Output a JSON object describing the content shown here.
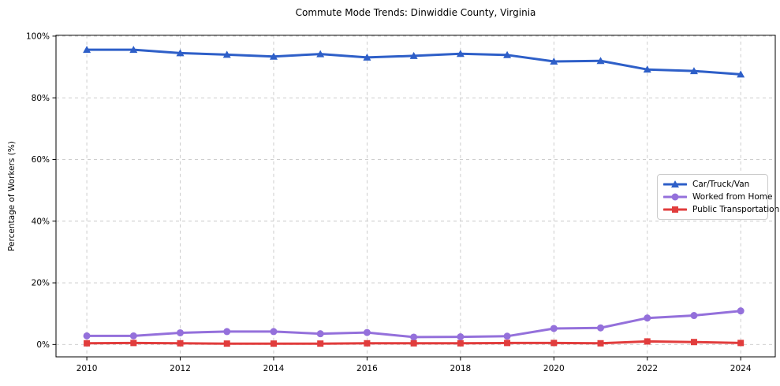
{
  "figure": {
    "background": "#ffffff",
    "grid_color": "#c8c8c8",
    "spine_color": "#000000"
  },
  "chart_data": {
    "type": "line",
    "title": "Commute Mode Trends: Dinwiddie County, Virginia",
    "xlabel": "",
    "ylabel": "Percentage of Workers (%)",
    "x": [
      2010,
      2011,
      2012,
      2013,
      2014,
      2015,
      2016,
      2017,
      2018,
      2019,
      2020,
      2021,
      2022,
      2023,
      2024
    ],
    "series": [
      {
        "name": "Car/Truck/Van",
        "marker": "triangle",
        "color": "#2e5fc8",
        "values": [
          95.6,
          95.6,
          94.5,
          94.0,
          93.4,
          94.2,
          93.1,
          93.6,
          94.3,
          93.9,
          91.8,
          92.0,
          89.2,
          88.7,
          87.6
        ]
      },
      {
        "name": "Worked from Home",
        "marker": "circle",
        "color": "#9470db",
        "values": [
          2.8,
          2.8,
          3.8,
          4.2,
          4.2,
          3.5,
          3.9,
          2.4,
          2.5,
          2.7,
          5.2,
          5.4,
          8.6,
          9.4,
          10.9
        ]
      },
      {
        "name": "Public Transportation",
        "marker": "square",
        "color": "#e13c3c",
        "values": [
          0.4,
          0.5,
          0.4,
          0.3,
          0.3,
          0.3,
          0.4,
          0.4,
          0.4,
          0.5,
          0.5,
          0.4,
          1.0,
          0.8,
          0.5
        ]
      }
    ],
    "xticks": [
      2010,
      2012,
      2014,
      2016,
      2018,
      2020,
      2022,
      2024
    ],
    "xtick_labels": [
      "2010",
      "2012",
      "2014",
      "2016",
      "2018",
      "2020",
      "2022",
      "2024"
    ],
    "yticks": [
      0,
      20,
      40,
      60,
      80,
      100
    ],
    "ytick_labels": [
      "0%",
      "20%",
      "40%",
      "60%",
      "80%",
      "100%"
    ],
    "xlim": [
      2009.34,
      2024.74
    ],
    "ylim": [
      -4,
      100.3
    ],
    "grid": true,
    "grid_style": "dashed",
    "legend_position": "center-right"
  }
}
